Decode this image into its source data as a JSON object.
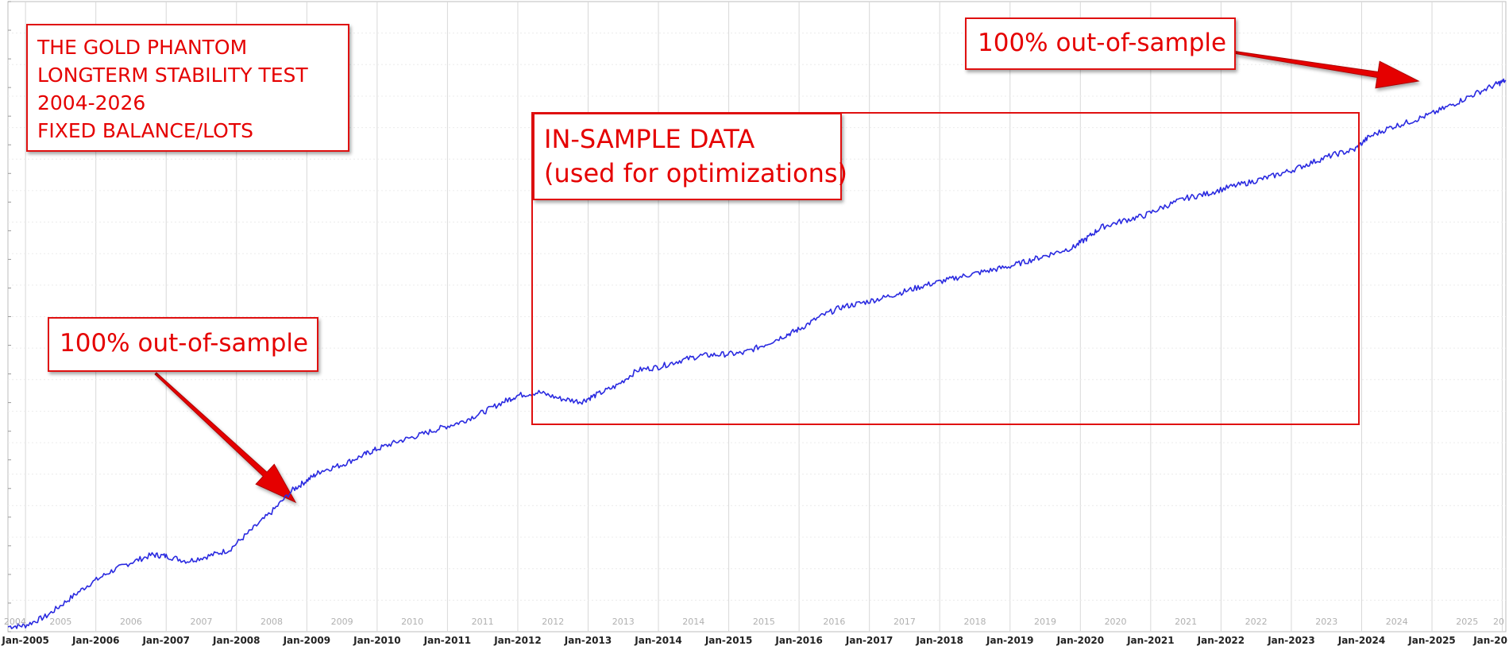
{
  "chart_data": {
    "type": "line",
    "title_lines": [
      "THE GOLD PHANTOM",
      "LONGTERM STABILITY TEST",
      "2004-2026",
      "FIXED BALANCE/LOTS"
    ],
    "x_axis_month_labels": [
      "Jan-2005",
      "Jan-2006",
      "Jan-2007",
      "Jan-2008",
      "Jan-2009",
      "Jan-2010",
      "Jan-2011",
      "Jan-2012",
      "Jan-2013",
      "Jan-2014",
      "Jan-2015",
      "Jan-2016",
      "Jan-2017",
      "Jan-2018",
      "Jan-2019",
      "Jan-2020",
      "Jan-2021",
      "Jan-2022",
      "Jan-2023",
      "Jan-2024",
      "Jan-2025",
      "Jan-20"
    ],
    "x_axis_year_labels": [
      "2004",
      "2005",
      "2006",
      "2007",
      "2008",
      "2009",
      "2010",
      "2011",
      "2012",
      "2013",
      "2014",
      "2015",
      "2016",
      "2017",
      "2018",
      "2019",
      "2020",
      "2021",
      "2022",
      "2023",
      "2024",
      "2025",
      "20"
    ],
    "xlim": [
      2004.75,
      2026.05
    ],
    "ylim": [
      0,
      100
    ],
    "grid": true,
    "series": [
      {
        "color": "#2a2ae0",
        "points": [
          [
            2004.75,
            0.8
          ],
          [
            2005.0,
            1.0
          ],
          [
            2005.3,
            2.5
          ],
          [
            2005.6,
            5.0
          ],
          [
            2005.9,
            7.5
          ],
          [
            2006.2,
            9.5
          ],
          [
            2006.5,
            11.0
          ],
          [
            2006.8,
            12.2
          ],
          [
            2007.0,
            12.0
          ],
          [
            2007.3,
            11.2
          ],
          [
            2007.6,
            12.0
          ],
          [
            2007.9,
            13.0
          ],
          [
            2008.2,
            16.0
          ],
          [
            2008.5,
            19.0
          ],
          [
            2008.8,
            22.5
          ],
          [
            2009.0,
            24.0
          ],
          [
            2009.2,
            25.5
          ],
          [
            2009.5,
            26.5
          ],
          [
            2009.8,
            28.0
          ],
          [
            2010.0,
            29.0
          ],
          [
            2010.3,
            30.2
          ],
          [
            2010.6,
            31.2
          ],
          [
            2010.9,
            32.3
          ],
          [
            2011.2,
            33.3
          ],
          [
            2011.5,
            34.8
          ],
          [
            2011.8,
            36.5
          ],
          [
            2012.0,
            37.5
          ],
          [
            2012.3,
            38.0
          ],
          [
            2012.6,
            37.0
          ],
          [
            2012.9,
            36.5
          ],
          [
            2013.1,
            37.5
          ],
          [
            2013.4,
            39.0
          ],
          [
            2013.7,
            41.5
          ],
          [
            2014.0,
            42.0
          ],
          [
            2014.3,
            43.0
          ],
          [
            2014.6,
            43.8
          ],
          [
            2014.9,
            44.0
          ],
          [
            2015.2,
            44.2
          ],
          [
            2015.5,
            45.5
          ],
          [
            2015.8,
            47.0
          ],
          [
            2016.0,
            48.0
          ],
          [
            2016.3,
            50.0
          ],
          [
            2016.6,
            51.5
          ],
          [
            2016.9,
            52.2
          ],
          [
            2017.2,
            53.0
          ],
          [
            2017.5,
            54.0
          ],
          [
            2017.8,
            55.0
          ],
          [
            2018.1,
            55.8
          ],
          [
            2018.4,
            56.6
          ],
          [
            2018.7,
            57.3
          ],
          [
            2019.0,
            58.0
          ],
          [
            2019.3,
            59.0
          ],
          [
            2019.6,
            60.0
          ],
          [
            2019.9,
            61.0
          ],
          [
            2020.1,
            62.5
          ],
          [
            2020.3,
            64.2
          ],
          [
            2020.6,
            65.2
          ],
          [
            2020.9,
            66.0
          ],
          [
            2021.2,
            67.5
          ],
          [
            2021.5,
            68.8
          ],
          [
            2021.8,
            69.5
          ],
          [
            2022.1,
            70.5
          ],
          [
            2022.4,
            71.3
          ],
          [
            2022.7,
            72.2
          ],
          [
            2023.0,
            73.2
          ],
          [
            2023.3,
            74.5
          ],
          [
            2023.6,
            75.7
          ],
          [
            2023.9,
            76.5
          ],
          [
            2024.1,
            78.5
          ],
          [
            2024.4,
            80.0
          ],
          [
            2024.7,
            81.0
          ],
          [
            2025.0,
            82.2
          ],
          [
            2025.3,
            83.7
          ],
          [
            2025.6,
            85.3
          ],
          [
            2025.9,
            86.8
          ],
          [
            2026.05,
            87.5
          ]
        ]
      }
    ],
    "annotations": [
      {
        "text": "100% out-of-sample",
        "position": "lower-left"
      },
      {
        "text": "100% out-of-sample",
        "position": "top-right"
      },
      {
        "text_lines": [
          "IN-SAMPLE DATA",
          "(used for optimizations)"
        ],
        "position": "center"
      }
    ]
  },
  "notes": {
    "oos_label": "100% out-of-sample",
    "insample_line1": "IN-SAMPLE DATA",
    "insample_line2": "(used for optimizations)"
  },
  "colors": {
    "line": "#2a2ae0",
    "annotation": "#e50000",
    "grid": "#d8d8d8"
  }
}
